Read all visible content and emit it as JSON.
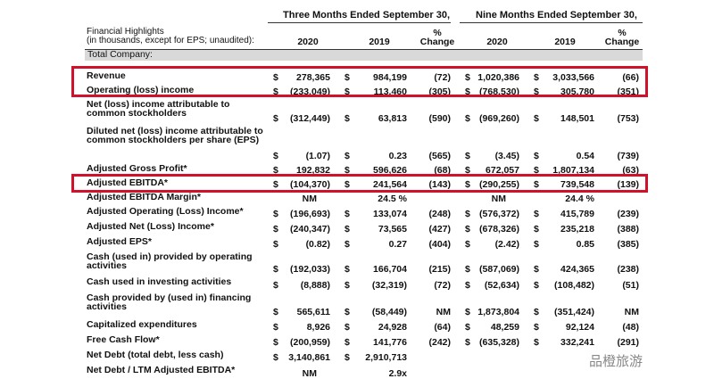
{
  "header": {
    "groups": [
      "Three Months Ended September 30,",
      "Nine Months Ended September 30,"
    ],
    "title": "Financial Highlights",
    "subtitle": "(in thousands, except for EPS; unaudited):",
    "columns": [
      "2020",
      "2019",
      "% Change",
      "2020",
      "2019",
      "% Change"
    ]
  },
  "section": "Total Company:",
  "rows": [
    {
      "label": "Revenue",
      "cells": [
        {
          "cur": "$",
          "amount": "278,365"
        },
        {
          "cur": "$",
          "amount": "984,199"
        },
        "(72)",
        {
          "cur": "$",
          "amount": "1,020,386"
        },
        {
          "cur": "$",
          "amount": "3,033,566"
        },
        "(66)"
      ]
    },
    {
      "label": "Operating (loss) income",
      "cells": [
        {
          "cur": "$",
          "amount": "(233,049)"
        },
        {
          "cur": "$",
          "amount": "113,460"
        },
        "(305)",
        {
          "cur": "$",
          "amount": "(768,530)"
        },
        {
          "cur": "$",
          "amount": "305,780"
        },
        "(351)"
      ]
    },
    {
      "label": "Net (loss) income attributable to common stockholders",
      "cells": [
        {
          "cur": "$",
          "amount": "(312,449)"
        },
        {
          "cur": "$",
          "amount": "63,813"
        },
        "(590)",
        {
          "cur": "$",
          "amount": "(969,260)"
        },
        {
          "cur": "$",
          "amount": "148,501"
        },
        "(753)"
      ]
    },
    {
      "label": "Diluted net (loss) income attributable to common stockholders per share (EPS)",
      "cells": [
        {
          "cur": "$",
          "amount": "(1.07)"
        },
        {
          "cur": "$",
          "amount": "0.23"
        },
        "(565)",
        {
          "cur": "$",
          "amount": "(3.45)"
        },
        {
          "cur": "$",
          "amount": "0.54"
        },
        "(739)"
      ]
    },
    {
      "label": "Adjusted Gross Profit*",
      "cells": [
        {
          "cur": "$",
          "amount": "192,832"
        },
        {
          "cur": "$",
          "amount": "596,626"
        },
        "(68)",
        {
          "cur": "$",
          "amount": "672,057"
        },
        {
          "cur": "$",
          "amount": "1,807,134"
        },
        "(63)"
      ]
    },
    {
      "label": "Adjusted EBITDA*",
      "cells": [
        {
          "cur": "$",
          "amount": "(104,370)"
        },
        {
          "cur": "$",
          "amount": "241,564"
        },
        "(143)",
        {
          "cur": "$",
          "amount": "(290,255)"
        },
        {
          "cur": "$",
          "amount": "739,548"
        },
        "(139)"
      ]
    },
    {
      "label": "Adjusted EBITDA Margin*",
      "cells": [
        "NM",
        "24.5 %",
        null,
        "NM",
        "24.4 %",
        null
      ]
    },
    {
      "label": "Adjusted Operating (Loss) Income*",
      "cells": [
        {
          "cur": "$",
          "amount": "(196,693)"
        },
        {
          "cur": "$",
          "amount": "133,074"
        },
        "(248)",
        {
          "cur": "$",
          "amount": "(576,372)"
        },
        {
          "cur": "$",
          "amount": "415,789"
        },
        "(239)"
      ]
    },
    {
      "label": "Adjusted Net (Loss) Income*",
      "cells": [
        {
          "cur": "$",
          "amount": "(240,347)"
        },
        {
          "cur": "$",
          "amount": "73,565"
        },
        "(427)",
        {
          "cur": "$",
          "amount": "(678,326)"
        },
        {
          "cur": "$",
          "amount": "235,218"
        },
        "(388)"
      ]
    },
    {
      "label": "Adjusted EPS*",
      "cells": [
        {
          "cur": "$",
          "amount": "(0.82)"
        },
        {
          "cur": "$",
          "amount": "0.27"
        },
        "(404)",
        {
          "cur": "$",
          "amount": "(2.42)"
        },
        {
          "cur": "$",
          "amount": "0.85"
        },
        "(385)"
      ]
    },
    {
      "label": "Cash (used in) provided by operating activities",
      "cells": [
        {
          "cur": "$",
          "amount": "(192,033)"
        },
        {
          "cur": "$",
          "amount": "166,704"
        },
        "(215)",
        {
          "cur": "$",
          "amount": "(587,069)"
        },
        {
          "cur": "$",
          "amount": "424,365"
        },
        "(238)"
      ]
    },
    {
      "label": "Cash used in investing activities",
      "cells": [
        {
          "cur": "$",
          "amount": "(8,888)"
        },
        {
          "cur": "$",
          "amount": "(32,319)"
        },
        "(72)",
        {
          "cur": "$",
          "amount": "(52,634)"
        },
        {
          "cur": "$",
          "amount": "(108,482)"
        },
        "(51)"
      ]
    },
    {
      "label": "Cash provided by (used in) financing activities",
      "cells": [
        {
          "cur": "$",
          "amount": "565,611"
        },
        {
          "cur": "$",
          "amount": "(58,449)"
        },
        "NM",
        {
          "cur": "$",
          "amount": "1,873,804"
        },
        {
          "cur": "$",
          "amount": "(351,424)"
        },
        "NM"
      ]
    },
    {
      "label": "Capitalized expenditures",
      "cells": [
        {
          "cur": "$",
          "amount": "8,926"
        },
        {
          "cur": "$",
          "amount": "24,928"
        },
        "(64)",
        {
          "cur": "$",
          "amount": "48,259"
        },
        {
          "cur": "$",
          "amount": "92,124"
        },
        "(48)"
      ]
    },
    {
      "label": "Free Cash Flow*",
      "cells": [
        {
          "cur": "$",
          "amount": "(200,959)"
        },
        {
          "cur": "$",
          "amount": "141,776"
        },
        "(242)",
        {
          "cur": "$",
          "amount": "(635,328)"
        },
        {
          "cur": "$",
          "amount": "332,241"
        },
        "(291)"
      ]
    },
    {
      "label": "Net Debt (total debt, less cash)",
      "cells": [
        {
          "cur": "$",
          "amount": "3,140,861"
        },
        {
          "cur": "$",
          "amount": "2,910,713"
        },
        null,
        null,
        null,
        null
      ]
    },
    {
      "label": "Net Debt / LTM Adjusted EBITDA*",
      "cells": [
        "NM",
        "2.9x",
        null,
        null,
        null,
        null
      ]
    }
  ],
  "watermark": "品橙旅游"
}
